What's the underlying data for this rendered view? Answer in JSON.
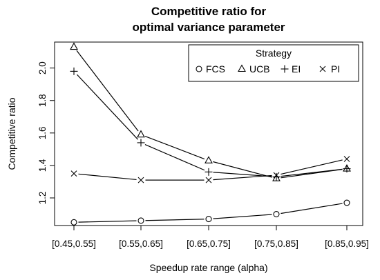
{
  "chart_data": {
    "type": "line",
    "title": [
      "Competitive ratio for",
      "optimal variance parameter"
    ],
    "xlabel": "Speedup rate range (alpha)",
    "ylabel": "Competitive ratio",
    "categories": [
      "[0.45,0.55]",
      "[0.55,0.65]",
      "[0.65,0.75]",
      "[0.75,0.85]",
      "[0.85,0.95]"
    ],
    "yticks": [
      "1.2",
      "1.4",
      "1.6",
      "1.8",
      "2.0"
    ],
    "ylim": [
      1.03,
      2.16
    ],
    "legend": {
      "title": "Strategy",
      "position": "top-right"
    },
    "series": [
      {
        "name": "FCS",
        "marker": "circle",
        "values": [
          1.05,
          1.06,
          1.07,
          1.1,
          1.17
        ]
      },
      {
        "name": "UCB",
        "marker": "triangle",
        "values": [
          2.13,
          1.59,
          1.43,
          1.32,
          1.38
        ]
      },
      {
        "name": "EI",
        "marker": "plus",
        "values": [
          1.98,
          1.54,
          1.36,
          1.33,
          1.38
        ]
      },
      {
        "name": "PI",
        "marker": "x",
        "values": [
          1.35,
          1.31,
          1.31,
          1.34,
          1.44
        ]
      }
    ],
    "grid": false,
    "colors": {
      "line": "#000000",
      "background": "#ffffff"
    }
  }
}
